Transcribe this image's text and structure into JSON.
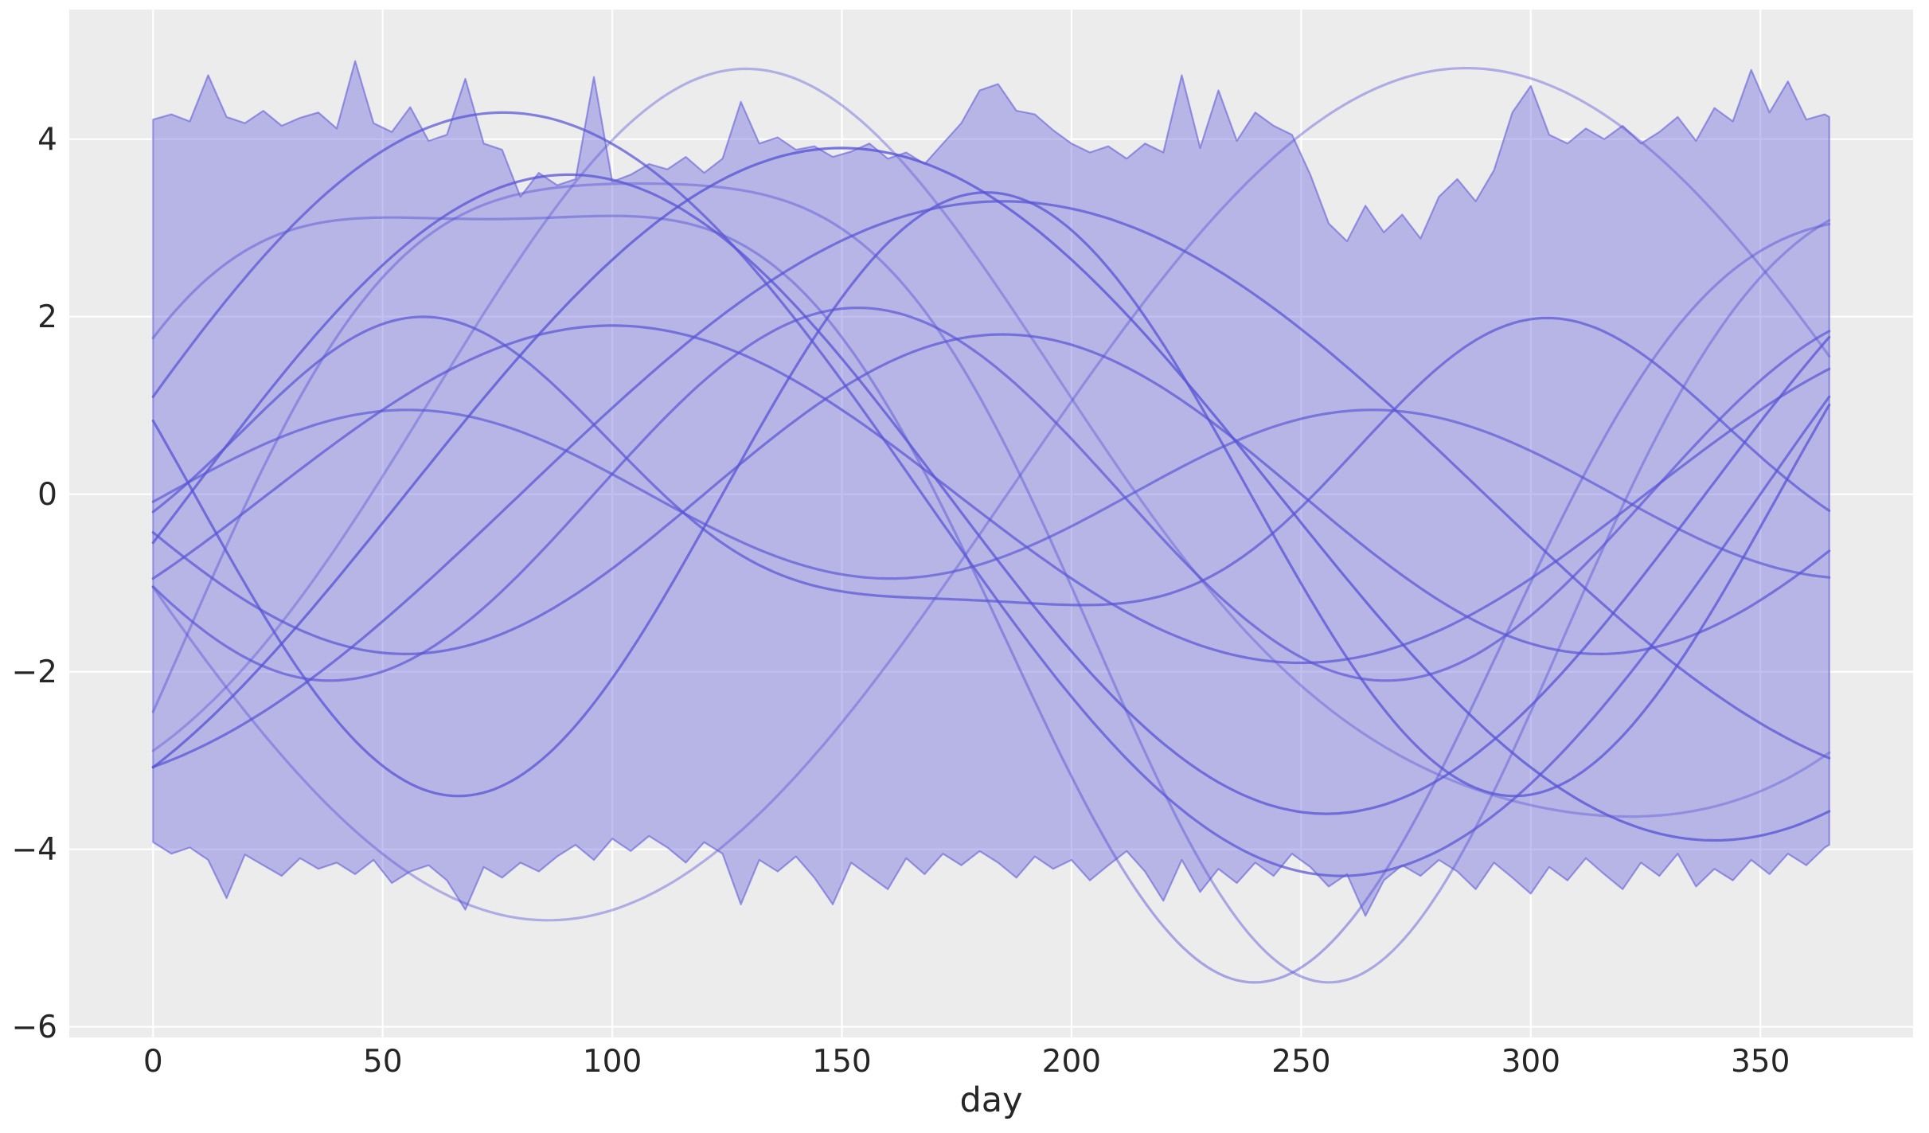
{
  "chart_data": {
    "type": "line",
    "title": "",
    "xlabel": "day",
    "ylabel": "",
    "grid": true,
    "legend": false,
    "xlim": [
      -18.25,
      383.25
    ],
    "ylim": [
      -6.12,
      5.46
    ],
    "x_ticks": [
      0,
      50,
      100,
      150,
      200,
      250,
      300,
      350
    ],
    "x_tick_labels": [
      "0",
      "50",
      "100",
      "150",
      "200",
      "250",
      "300",
      "350"
    ],
    "y_ticks": [
      -6,
      -4,
      -2,
      0,
      2,
      4
    ],
    "y_tick_labels": [
      "−6",
      "−4",
      "−2",
      "0",
      "2",
      "4"
    ],
    "colors": {
      "figure_background": "#ffffff",
      "axes_background": "#ececec",
      "grid": "#ffffff",
      "band_fill_rgb": "109,105,220",
      "band_fill_alpha": 0.42,
      "band_edge_rgb": "95,90,216",
      "band_edge_alpha": 0.58,
      "line_rgb": "88,84,214",
      "tick_label": "#262626"
    },
    "band": {
      "name": "noisy-daily-envelope",
      "days": [
        0,
        4,
        8,
        12,
        16,
        20,
        24,
        28,
        32,
        36,
        40,
        44,
        48,
        52,
        56,
        60,
        64,
        68,
        72,
        76,
        80,
        84,
        88,
        92,
        96,
        100,
        104,
        108,
        112,
        116,
        120,
        124,
        128,
        132,
        136,
        140,
        144,
        148,
        152,
        156,
        160,
        164,
        168,
        172,
        176,
        180,
        184,
        188,
        192,
        196,
        200,
        204,
        208,
        212,
        216,
        220,
        224,
        228,
        232,
        236,
        240,
        244,
        248,
        252,
        256,
        260,
        264,
        268,
        272,
        276,
        280,
        284,
        288,
        292,
        296,
        300,
        304,
        308,
        312,
        316,
        320,
        324,
        328,
        332,
        336,
        340,
        344,
        348,
        352,
        356,
        360,
        364,
        365
      ],
      "upper": [
        4.22,
        4.28,
        4.2,
        4.72,
        4.25,
        4.18,
        4.32,
        4.15,
        4.24,
        4.3,
        4.12,
        4.88,
        4.18,
        4.08,
        4.36,
        3.98,
        4.05,
        4.68,
        3.95,
        3.88,
        3.35,
        3.62,
        3.48,
        3.55,
        4.7,
        3.52,
        3.6,
        3.72,
        3.66,
        3.8,
        3.62,
        3.78,
        4.42,
        3.95,
        4.02,
        3.88,
        3.92,
        3.8,
        3.86,
        3.95,
        3.78,
        3.85,
        3.72,
        3.95,
        4.18,
        4.55,
        4.62,
        4.32,
        4.28,
        4.1,
        3.95,
        3.85,
        3.92,
        3.78,
        3.95,
        3.85,
        4.72,
        3.9,
        4.55,
        3.98,
        4.3,
        4.15,
        4.05,
        3.6,
        3.05,
        2.85,
        3.25,
        2.95,
        3.15,
        2.88,
        3.35,
        3.55,
        3.3,
        3.65,
        4.3,
        4.6,
        4.05,
        3.95,
        4.12,
        4.0,
        4.15,
        3.95,
        4.08,
        4.25,
        3.98,
        4.35,
        4.2,
        4.78,
        4.3,
        4.65,
        4.22,
        4.28,
        4.25
      ],
      "lower": [
        -3.92,
        -4.05,
        -3.98,
        -4.12,
        -4.55,
        -4.06,
        -4.18,
        -4.3,
        -4.1,
        -4.22,
        -4.15,
        -4.28,
        -4.12,
        -4.38,
        -4.25,
        -4.18,
        -4.35,
        -4.68,
        -4.2,
        -4.32,
        -4.15,
        -4.25,
        -4.08,
        -3.95,
        -4.12,
        -3.88,
        -4.02,
        -3.85,
        -3.98,
        -4.15,
        -3.92,
        -4.05,
        -4.62,
        -4.12,
        -4.25,
        -4.08,
        -4.32,
        -4.62,
        -4.15,
        -4.3,
        -4.45,
        -4.1,
        -4.28,
        -4.05,
        -4.18,
        -4.02,
        -4.15,
        -4.32,
        -4.08,
        -4.22,
        -4.12,
        -4.35,
        -4.18,
        -4.02,
        -4.25,
        -4.58,
        -4.12,
        -4.48,
        -4.22,
        -4.38,
        -4.15,
        -4.3,
        -4.05,
        -4.2,
        -4.42,
        -4.28,
        -4.75,
        -4.35,
        -4.18,
        -4.3,
        -4.12,
        -4.25,
        -4.45,
        -4.15,
        -4.32,
        -4.5,
        -4.2,
        -4.35,
        -4.1,
        -4.28,
        -4.45,
        -4.15,
        -4.3,
        -4.05,
        -4.42,
        -4.22,
        -4.35,
        -4.12,
        -4.28,
        -4.05,
        -4.18,
        -3.98,
        -3.95
      ]
    },
    "curves": [
      {
        "amp1": 4.2,
        "period1": 365,
        "phase1": 40,
        "amp2": 0.6,
        "period2": 182,
        "phase2": 80,
        "alpha": 0.4,
        "width": 3.2
      },
      {
        "amp1": 4.5,
        "period1": 300,
        "phase1": 31,
        "amp2": 1.0,
        "period2": 150,
        "phase2": 143.5,
        "alpha": 0.45,
        "width": 3.2
      },
      {
        "amp1": 4.3,
        "period1": 330,
        "phase1": -7.5,
        "amp2": 1.2,
        "period2": 165,
        "phase2": 116,
        "alpha": 0.48,
        "width": 3.2
      },
      {
        "amp1": 4.8,
        "period1": 400,
        "phase1": 186,
        "amp2": 0,
        "period2": 1,
        "phase2": 0,
        "alpha": 0.42,
        "width": 3.2
      },
      {
        "amp1": 4.3,
        "period1": 365,
        "phase1": -15,
        "amp2": 0,
        "period2": 1,
        "phase2": 0,
        "alpha": 0.72,
        "width": 3.2
      },
      {
        "amp1": 3.4,
        "period1": 230,
        "phase1": 124,
        "amp2": 0,
        "period2": 1,
        "phase2": 0,
        "alpha": 0.75,
        "width": 3.2
      },
      {
        "amp1": 1.6,
        "period1": 250,
        "phase1": -5,
        "amp2": 0.4,
        "period2": 120,
        "phase2": 30,
        "alpha": 0.7,
        "width": 3.2
      },
      {
        "amp1": 0.95,
        "period1": 210,
        "phase1": 3,
        "amp2": 0,
        "period2": 1,
        "phase2": 0,
        "alpha": 0.65,
        "width": 3.2
      },
      {
        "amp1": 1.8,
        "period1": 260,
        "phase1": 120,
        "amp2": 0,
        "period2": 1,
        "phase2": 0,
        "alpha": 0.7,
        "width": 3.2
      },
      {
        "amp1": 3.6,
        "period1": 330,
        "phase1": 8,
        "amp2": 0,
        "period2": 1,
        "phase2": 0,
        "alpha": 0.75,
        "width": 3.2
      },
      {
        "amp1": 1.9,
        "period1": 300,
        "phase1": 25,
        "amp2": 0,
        "period2": 1,
        "phase2": 0,
        "alpha": 0.7,
        "width": 3.2
      },
      {
        "amp1": 2.1,
        "period1": 230,
        "phase1": 96,
        "amp2": 0,
        "period2": 1,
        "phase2": 0,
        "alpha": 0.68,
        "width": 3.2
      },
      {
        "amp1": 3.9,
        "period1": 380,
        "phase1": 55,
        "amp2": 0,
        "period2": 1,
        "phase2": 0,
        "alpha": 0.78,
        "width": 3.2
      },
      {
        "amp1": 3.3,
        "period1": 420,
        "phase1": 80,
        "amp2": 0,
        "period2": 1,
        "phase2": 0,
        "alpha": 0.72,
        "width": 3.2
      }
    ]
  }
}
